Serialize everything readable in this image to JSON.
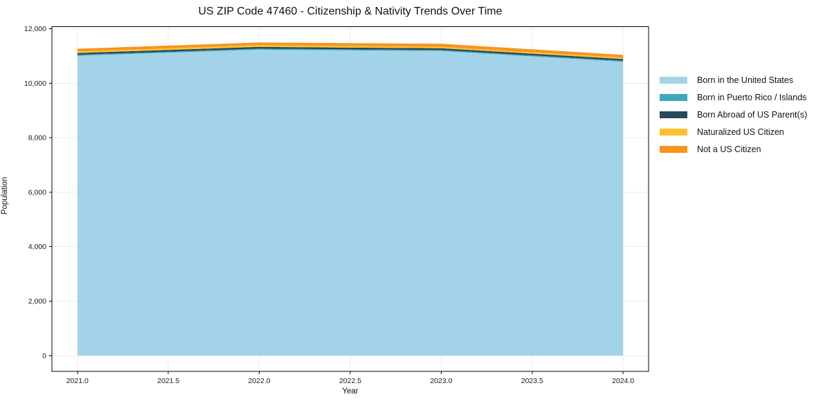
{
  "chart_data": {
    "type": "area",
    "stacked": true,
    "title": "US ZIP Code 47460 - Citizenship & Nativity Trends Over Time",
    "xlabel": "Year",
    "ylabel": "Population",
    "x": [
      2021,
      2022,
      2023,
      2024
    ],
    "series": [
      {
        "name": "Born in the United States",
        "color": "#A3D3E8",
        "values": [
          11005,
          11230,
          11180,
          10785
        ]
      },
      {
        "name": "Born in Puerto Rico / Islands",
        "color": "#3CA8BC",
        "values": [
          38,
          38,
          38,
          38
        ]
      },
      {
        "name": "Born Abroad of US Parent(s)",
        "color": "#27485C",
        "values": [
          63,
          63,
          63,
          63
        ]
      },
      {
        "name": "Naturalized US Citizen",
        "color": "#FBC12D",
        "values": [
          57,
          63,
          51,
          51
        ]
      },
      {
        "name": "Not a US Citizen",
        "color": "#F7941E",
        "values": [
          101,
          100,
          114,
          101
        ]
      }
    ],
    "xlim": [
      2020.86,
      2024.14
    ],
    "ylim": [
      -575,
      12075
    ],
    "xticks": {
      "values": [
        2021.0,
        2021.5,
        2022.0,
        2022.5,
        2023.0,
        2023.5,
        2024.0
      ],
      "labels": [
        "2021.0",
        "2021.5",
        "2022.0",
        "2022.5",
        "2023.0",
        "2023.5",
        "2024.0"
      ]
    },
    "yticks": {
      "values": [
        0,
        2000,
        4000,
        6000,
        8000,
        10000,
        12000
      ],
      "labels": [
        "0",
        "2,000",
        "4,000",
        "6,000",
        "8,000",
        "10,000",
        "12,000"
      ]
    },
    "grid": true,
    "legend_position": "right",
    "colors": {
      "grid": "#ebebeb",
      "spine": "#000000",
      "tick_text": "#1a1a1a",
      "background": "#ffffff"
    }
  }
}
